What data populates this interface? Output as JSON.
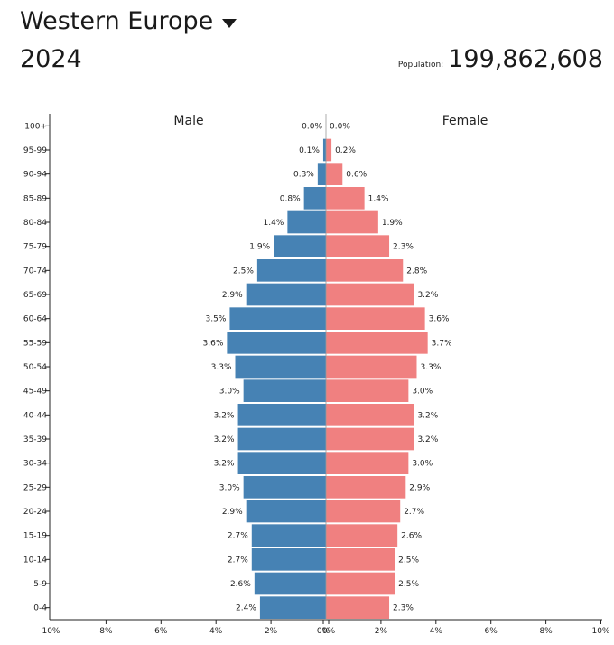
{
  "header": {
    "region": "Western Europe",
    "year": "2024",
    "population_label": "Population:",
    "population_value": "199,862,608"
  },
  "chart_data": {
    "type": "bar",
    "orientation": "horizontal-pyramid",
    "categories": [
      "100+",
      "95-99",
      "90-94",
      "85-89",
      "80-84",
      "75-79",
      "70-74",
      "65-69",
      "60-64",
      "55-59",
      "50-54",
      "45-49",
      "40-44",
      "35-39",
      "30-34",
      "25-29",
      "20-24",
      "15-19",
      "10-14",
      "5-9",
      "0-4"
    ],
    "series": [
      {
        "name": "Male",
        "color": "#4682b4",
        "values": [
          0.0,
          0.1,
          0.3,
          0.8,
          1.4,
          1.9,
          2.5,
          2.9,
          3.5,
          3.6,
          3.3,
          3.0,
          3.2,
          3.2,
          3.2,
          3.0,
          2.9,
          2.7,
          2.7,
          2.6,
          2.4
        ],
        "labels": [
          "0.0%",
          "0.1%",
          "0.3%",
          "0.8%",
          "1.4%",
          "1.9%",
          "2.5%",
          "2.9%",
          "3.5%",
          "3.6%",
          "3.3%",
          "3.0%",
          "3.2%",
          "3.2%",
          "3.2%",
          "3.0%",
          "2.9%",
          "2.7%",
          "2.7%",
          "2.6%",
          "2.4%"
        ]
      },
      {
        "name": "Female",
        "color": "#f08080",
        "values": [
          0.0,
          0.2,
          0.6,
          1.4,
          1.9,
          2.3,
          2.8,
          3.2,
          3.6,
          3.7,
          3.3,
          3.0,
          3.2,
          3.2,
          3.0,
          2.9,
          2.7,
          2.6,
          2.5,
          2.5,
          2.3
        ],
        "labels": [
          "0.0%",
          "0.2%",
          "0.6%",
          "1.4%",
          "1.9%",
          "2.3%",
          "2.8%",
          "3.2%",
          "3.6%",
          "3.7%",
          "3.3%",
          "3.0%",
          "3.2%",
          "3.2%",
          "3.0%",
          "2.9%",
          "2.7%",
          "2.6%",
          "2.5%",
          "2.5%",
          "2.3%"
        ]
      }
    ],
    "xlim": [
      -10,
      10
    ],
    "x_ticks": [
      "10%",
      "8%",
      "6%",
      "4%",
      "2%",
      "0%",
      "0%",
      "2%",
      "4%",
      "6%",
      "8%",
      "10%"
    ],
    "grid": false,
    "legend": "sex labels at top of each half"
  }
}
